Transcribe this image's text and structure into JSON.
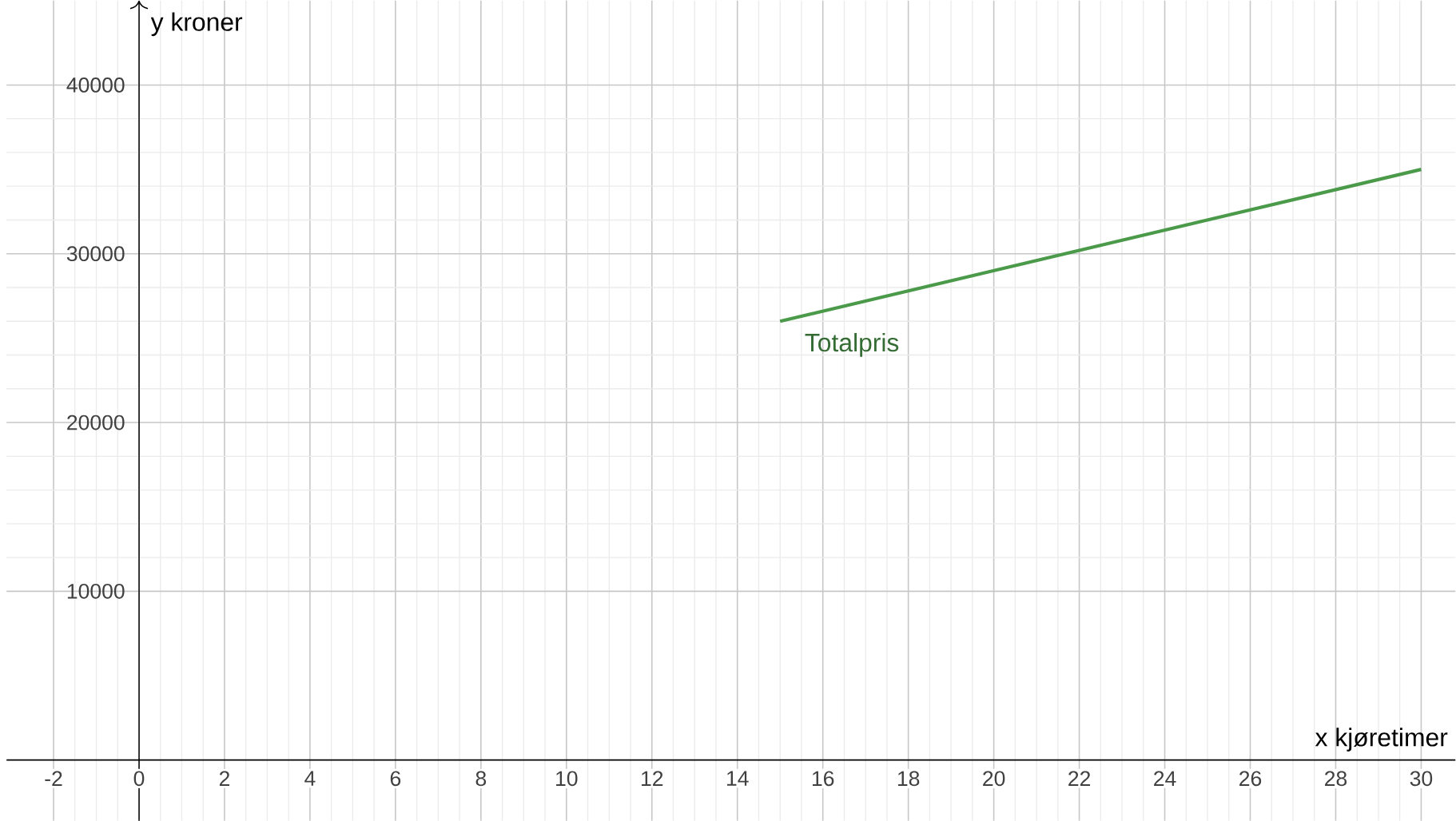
{
  "chart_data": {
    "type": "line",
    "xlabel": "x kjøretimer",
    "ylabel": "y kroner",
    "xlim": [
      -3.1,
      30.8
    ],
    "ylim": [
      -3600,
      45000
    ],
    "xticks": [
      -2,
      0,
      2,
      4,
      6,
      8,
      10,
      12,
      14,
      16,
      18,
      20,
      22,
      24,
      26,
      28,
      30
    ],
    "yticks": [
      10000,
      20000,
      30000,
      40000
    ],
    "grid": true,
    "marker": "none",
    "line_style": "solid",
    "series": [
      {
        "name": "Totalpris",
        "color": "#4a9a4a",
        "x": [
          15,
          30
        ],
        "values": [
          26000,
          35000
        ]
      }
    ]
  }
}
